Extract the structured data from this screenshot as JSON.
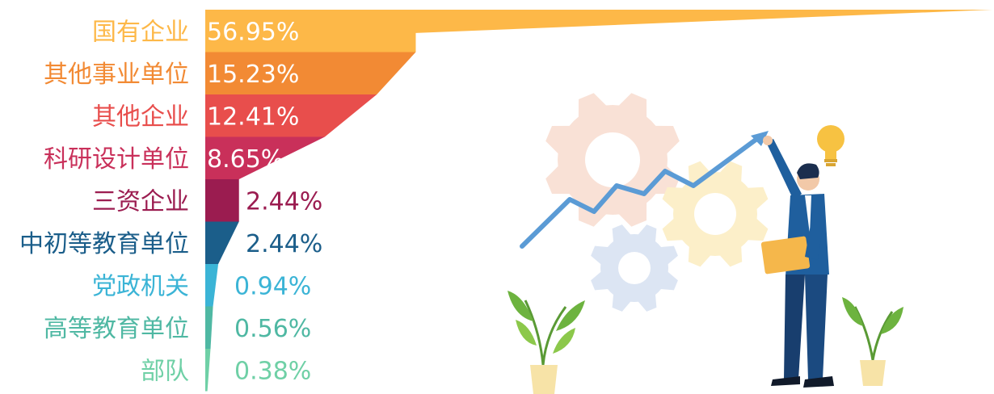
{
  "chart_data": {
    "type": "bar",
    "title": "",
    "xlabel": "",
    "ylabel": "",
    "categories": [
      "国有企业",
      "其他事业单位",
      "其他企业",
      "科研设计单位",
      "三资企业",
      "中初等教育单位",
      "党政机关",
      "高等教育单位",
      "部队"
    ],
    "values": [
      56.95,
      15.23,
      12.41,
      8.65,
      2.44,
      2.44,
      0.94,
      0.56,
      0.38
    ],
    "value_labels": [
      "56.95%",
      "15.23%",
      "12.41%",
      "8.65%",
      "2.44%",
      "2.44%",
      "0.94%",
      "0.56%",
      "0.38%"
    ],
    "colors": [
      "#FDB848",
      "#F28A34",
      "#E84E4C",
      "#C9305A",
      "#9B1C50",
      "#1B5E8A",
      "#3BB4D6",
      "#4FB8A3",
      "#6FD0A6"
    ],
    "xlim": [
      0,
      56.95
    ],
    "grid": false,
    "legend": "none"
  },
  "illustration": {
    "icons": [
      "gear-icon",
      "trend-arrow-icon",
      "lightbulb-icon",
      "businessman-figure",
      "plant-icon"
    ],
    "colors": {
      "gear_peach": "#F9E1D6",
      "gear_yellow": "#FCEFC9",
      "gear_blue": "#DCE5F3",
      "arrow": "#5B9BD5",
      "suit": "#1F5F9E",
      "folder": "#F5B74B",
      "bulb": "#F7C242",
      "leaf": "#6DB33F",
      "pot": "#F7E3A7"
    }
  }
}
